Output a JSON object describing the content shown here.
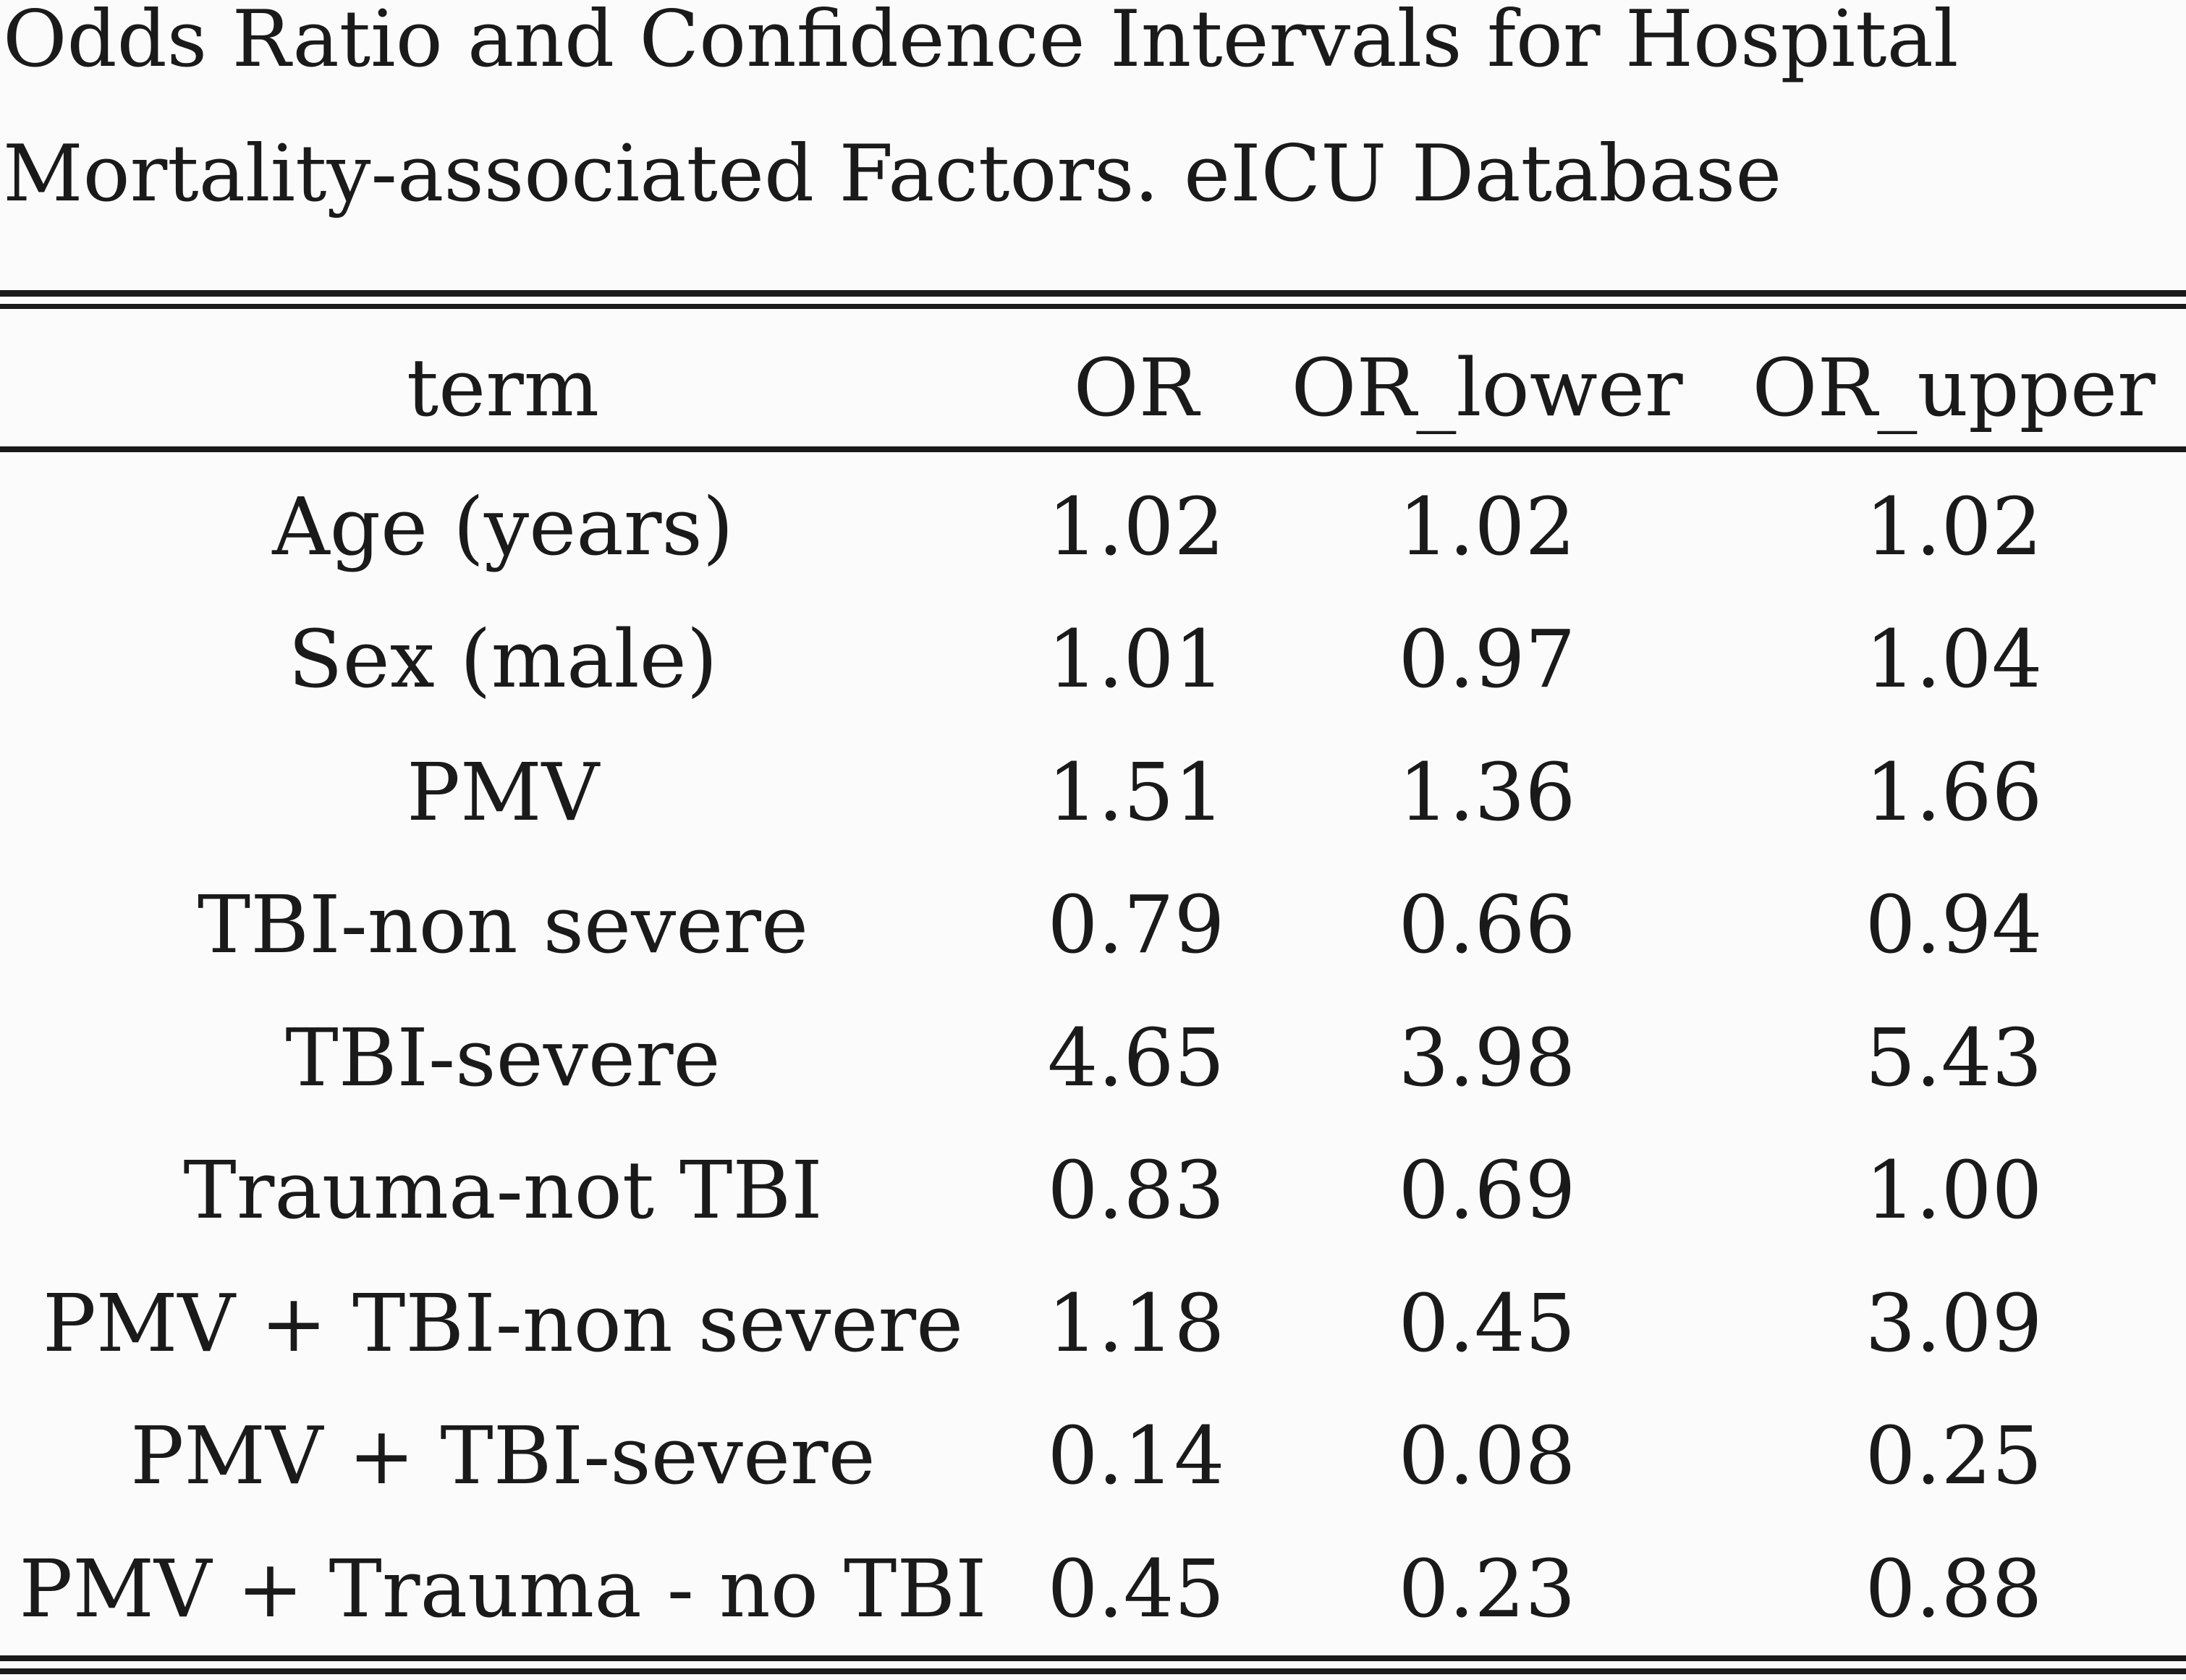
{
  "title": {
    "line1": "Odds Ratio and Confidence Intervals for Hospital",
    "line2": "Mortality-associated Factors. eICU Database"
  },
  "table": {
    "columns": [
      "term",
      "OR",
      "OR_lower",
      "OR_upper"
    ],
    "rows": [
      [
        "Age (years)",
        "1.02",
        "1.02",
        "1.02"
      ],
      [
        "Sex (male)",
        "1.01",
        "0.97",
        "1.04"
      ],
      [
        "PMV",
        "1.51",
        "1.36",
        "1.66"
      ],
      [
        "TBI-non severe",
        "0.79",
        "0.66",
        "0.94"
      ],
      [
        "TBI-severe",
        "4.65",
        "3.98",
        "5.43"
      ],
      [
        "Trauma-not TBI",
        "0.83",
        "0.69",
        "1.00"
      ],
      [
        "PMV + TBI-non severe",
        "1.18",
        "0.45",
        "3.09"
      ],
      [
        "PMV + TBI-severe",
        "0.14",
        "0.08",
        "0.25"
      ],
      [
        "PMV + Trauma - no TBI",
        "0.45",
        "0.23",
        "0.88"
      ]
    ]
  }
}
